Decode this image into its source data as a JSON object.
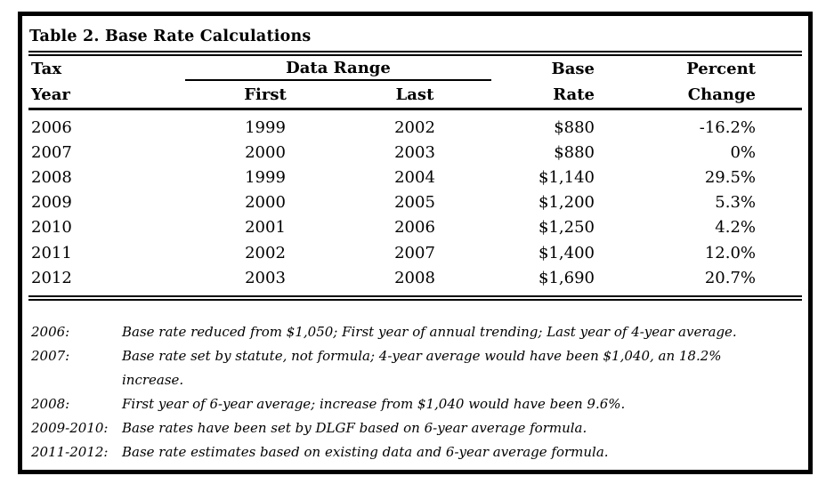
{
  "title": "Table 2. Base Rate Calculations",
  "table": {
    "header": {
      "col1_line1": "Tax",
      "col1_line2": "Year",
      "data_range": "Data Range",
      "first": "First",
      "last": "Last",
      "base_line1": "Base",
      "base_line2": "Rate",
      "percent_line1": "Percent",
      "percent_line2": "Change"
    },
    "rows": [
      {
        "tax_year": "2006",
        "first": "1999",
        "last": "2002",
        "base_rate": "$880",
        "percent_change": "-16.2%"
      },
      {
        "tax_year": "2007",
        "first": "2000",
        "last": "2003",
        "base_rate": "$880",
        "percent_change": "0%"
      },
      {
        "tax_year": "2008",
        "first": "1999",
        "last": "2004",
        "base_rate": "$1,140",
        "percent_change": "29.5%"
      },
      {
        "tax_year": "2009",
        "first": "2000",
        "last": "2005",
        "base_rate": "$1,200",
        "percent_change": "5.3%"
      },
      {
        "tax_year": "2010",
        "first": "2001",
        "last": "2006",
        "base_rate": "$1,250",
        "percent_change": "4.2%"
      },
      {
        "tax_year": "2011",
        "first": "2002",
        "last": "2007",
        "base_rate": "$1,400",
        "percent_change": "12.0%"
      },
      {
        "tax_year": "2012",
        "first": "2003",
        "last": "2008",
        "base_rate": "$1,690",
        "percent_change": "20.7%"
      }
    ]
  },
  "footnotes": [
    {
      "label": "2006:",
      "text": "Base rate reduced from $1,050; First year of annual trending; Last year of 4-year average."
    },
    {
      "label": "2007:",
      "text": "Base rate set by statute, not formula; 4-year average would have been $1,040, an 18.2% increase."
    },
    {
      "label": "2008:",
      "text": "First year of 6-year average; increase from $1,040 would have been 9.6%."
    },
    {
      "label": "2009-2010:",
      "text": "Base rates have been set by DLGF based on 6-year average formula."
    },
    {
      "label": "2011-2012:",
      "text": "Base rate estimates based on existing data and 6-year average formula."
    }
  ],
  "colors": {
    "text": "#000000",
    "background": "#ffffff",
    "border": "#000000"
  }
}
